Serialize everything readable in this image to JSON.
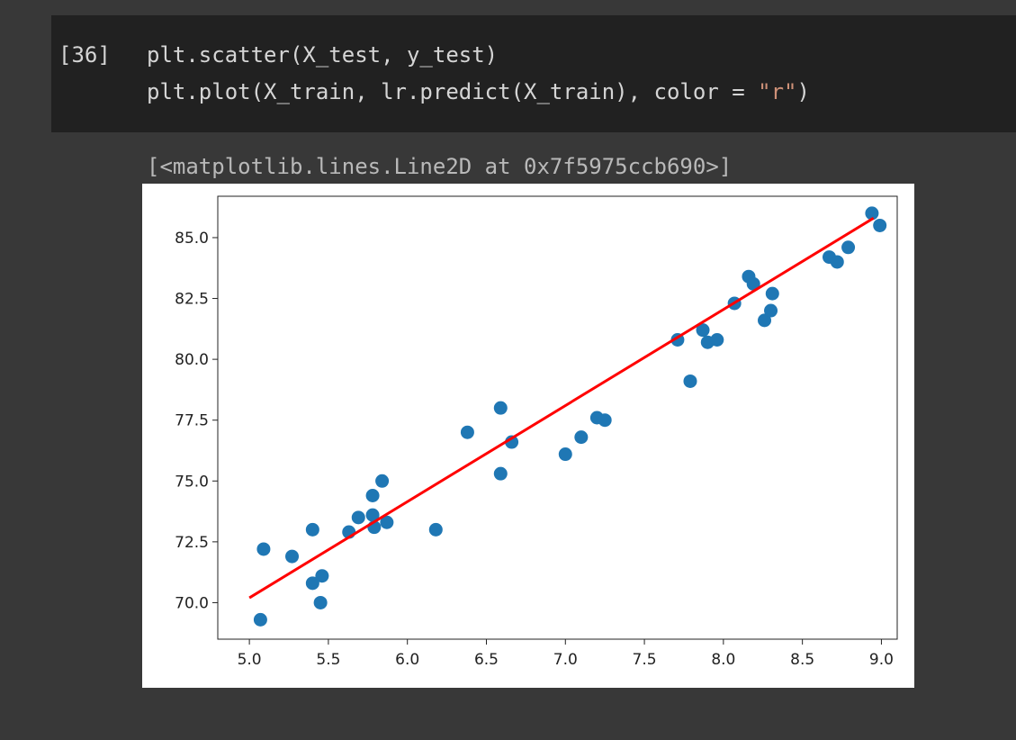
{
  "cell": {
    "exec_count": "[36]",
    "code_line1": "plt.scatter(X_test, y_test)",
    "code_line2_prefix": "plt.plot(X_train, lr.predict(X_train), color = ",
    "code_line2_string": "\"r\"",
    "code_line2_suffix": ")"
  },
  "output": {
    "text": "[<matplotlib.lines.Line2D at 0x7f5975ccb690>]"
  },
  "colors": {
    "background": "#383838",
    "cell_background": "#212121",
    "scatter": "#1f77b4",
    "line": "#ff0000"
  },
  "chart_data": {
    "type": "scatter",
    "title": "",
    "xlabel": "",
    "ylabel": "",
    "xlim": [
      4.8,
      9.1
    ],
    "ylim": [
      68.5,
      86.7
    ],
    "xticks": [
      5.0,
      5.5,
      6.0,
      6.5,
      7.0,
      7.5,
      8.0,
      8.5,
      9.0
    ],
    "xtick_labels": [
      "5.0",
      "5.5",
      "6.0",
      "6.5",
      "7.0",
      "7.5",
      "8.0",
      "8.5",
      "9.0"
    ],
    "yticks": [
      70.0,
      72.5,
      75.0,
      77.5,
      80.0,
      82.5,
      85.0
    ],
    "ytick_labels": [
      "70.0",
      "72.5",
      "75.0",
      "77.5",
      "80.0",
      "82.5",
      "85.0"
    ],
    "grid": false,
    "scatter_points": [
      [
        5.07,
        69.3
      ],
      [
        5.09,
        72.2
      ],
      [
        5.27,
        71.9
      ],
      [
        5.4,
        73.0
      ],
      [
        5.4,
        70.8
      ],
      [
        5.45,
        70.0
      ],
      [
        5.46,
        71.1
      ],
      [
        5.63,
        72.9
      ],
      [
        5.69,
        73.5
      ],
      [
        5.78,
        74.4
      ],
      [
        5.78,
        73.6
      ],
      [
        5.79,
        73.1
      ],
      [
        5.84,
        75.0
      ],
      [
        5.87,
        73.3
      ],
      [
        6.18,
        73.0
      ],
      [
        6.38,
        77.0
      ],
      [
        6.59,
        78.0
      ],
      [
        6.59,
        75.3
      ],
      [
        6.66,
        76.6
      ],
      [
        7.0,
        76.1
      ],
      [
        7.1,
        76.8
      ],
      [
        7.2,
        77.6
      ],
      [
        7.25,
        77.5
      ],
      [
        7.71,
        80.8
      ],
      [
        7.79,
        79.1
      ],
      [
        7.87,
        81.2
      ],
      [
        7.9,
        80.7
      ],
      [
        7.96,
        80.8
      ],
      [
        8.07,
        82.3
      ],
      [
        8.16,
        83.4
      ],
      [
        8.19,
        83.1
      ],
      [
        8.26,
        81.6
      ],
      [
        8.3,
        82.0
      ],
      [
        8.31,
        82.7
      ],
      [
        8.67,
        84.2
      ],
      [
        8.72,
        84.0
      ],
      [
        8.79,
        84.6
      ],
      [
        8.94,
        86.0
      ],
      [
        8.99,
        85.5
      ]
    ],
    "line": {
      "x": [
        5.0,
        8.95
      ],
      "y": [
        70.2,
        85.8
      ]
    }
  }
}
